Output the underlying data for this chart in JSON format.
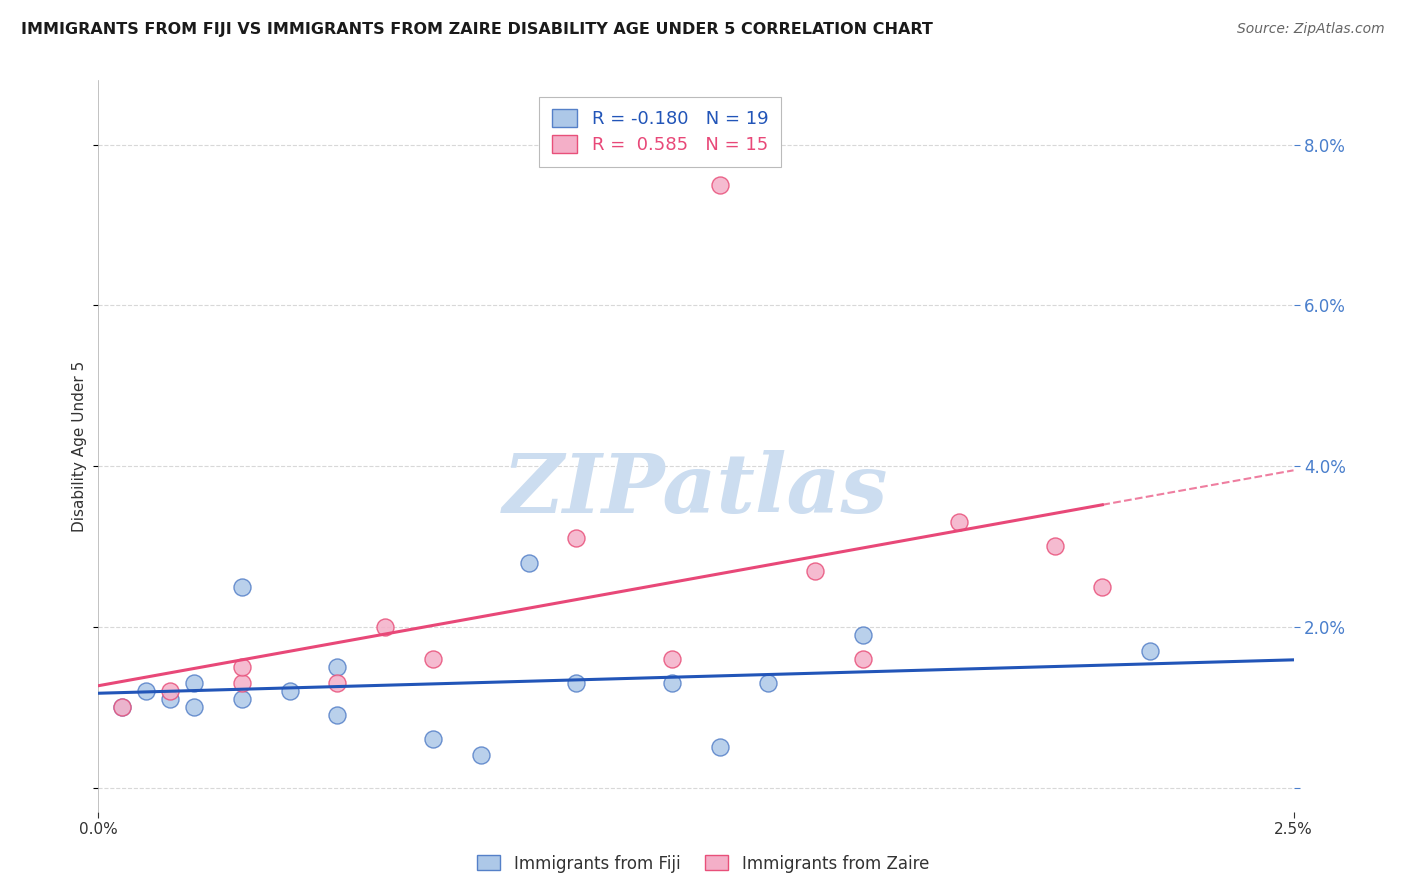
{
  "title": "IMMIGRANTS FROM FIJI VS IMMIGRANTS FROM ZAIRE DISABILITY AGE UNDER 5 CORRELATION CHART",
  "source": "Source: ZipAtlas.com",
  "ylabel": "Disability Age Under 5",
  "legend_label_fiji": "Immigrants from Fiji",
  "legend_label_zaire": "Immigrants from Zaire",
  "fiji_R": -0.18,
  "fiji_N": 19,
  "zaire_R": 0.585,
  "zaire_N": 15,
  "fiji_color": "#adc8e8",
  "zaire_color": "#f4afc8",
  "fiji_edge_color": "#5580c8",
  "zaire_edge_color": "#e8507a",
  "fiji_line_color": "#2255b8",
  "zaire_line_color": "#e84878",
  "xmin": 0.0,
  "xmax": 0.025,
  "ymin": -0.003,
  "ymax": 0.088,
  "ytick_vals": [
    0.0,
    0.02,
    0.04,
    0.06,
    0.08
  ],
  "fiji_scatter_x": [
    0.0005,
    0.001,
    0.0015,
    0.002,
    0.002,
    0.003,
    0.003,
    0.004,
    0.005,
    0.005,
    0.007,
    0.008,
    0.009,
    0.01,
    0.012,
    0.013,
    0.014,
    0.016,
    0.022
  ],
  "fiji_scatter_y": [
    0.01,
    0.012,
    0.011,
    0.013,
    0.01,
    0.025,
    0.011,
    0.012,
    0.009,
    0.015,
    0.006,
    0.004,
    0.028,
    0.013,
    0.013,
    0.005,
    0.013,
    0.019,
    0.017
  ],
  "zaire_scatter_x": [
    0.0005,
    0.0015,
    0.003,
    0.003,
    0.005,
    0.006,
    0.007,
    0.01,
    0.012,
    0.013,
    0.015,
    0.016,
    0.018,
    0.02,
    0.021
  ],
  "zaire_scatter_y": [
    0.01,
    0.012,
    0.013,
    0.015,
    0.013,
    0.02,
    0.016,
    0.031,
    0.016,
    0.075,
    0.027,
    0.016,
    0.033,
    0.03,
    0.025
  ],
  "watermark_text": "ZIPatlas",
  "watermark_color": "#ccddf0",
  "background_color": "#ffffff",
  "grid_color": "#d8d8d8",
  "title_color": "#1a1a1a",
  "source_color": "#666666",
  "ylabel_color": "#333333",
  "tick_color": "#4a7fcc"
}
